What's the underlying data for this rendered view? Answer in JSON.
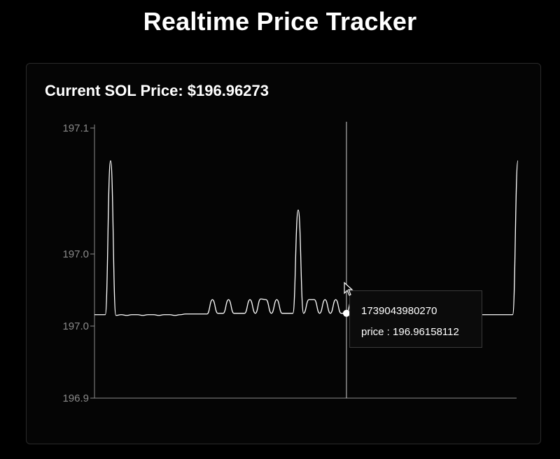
{
  "page": {
    "title": "Realtime Price Tracker",
    "price_heading": "Current SOL Price: $196.96273"
  },
  "colors": {
    "background": "#000000",
    "line": "#ffffff",
    "axis": "#8a8a8a",
    "card_border": "#2a2a2a"
  },
  "tooltip": {
    "timestamp": "1739043980270",
    "price_text": "price : 196.96158112"
  },
  "chart_data": {
    "type": "line",
    "ylim": [
      196.9,
      197.1
    ],
    "y_tick_labels": [
      "196.9",
      "197.0",
      "197.0",
      "197.1"
    ],
    "y_tick_values": [
      196.9,
      196.95,
      197.0,
      197.1
    ],
    "grid": false,
    "series": [
      {
        "values": [
          196.961,
          196.961,
          196.961,
          197.0735,
          196.9605,
          196.961,
          196.9605,
          196.961,
          196.961,
          196.9605,
          196.961,
          196.961,
          196.9605,
          196.961,
          196.961,
          196.9605,
          196.961,
          196.9615,
          196.9615,
          196.9615,
          196.9615,
          196.9615,
          196.972,
          196.962,
          196.962,
          196.972,
          196.962,
          196.962,
          196.962,
          196.972,
          196.962,
          196.9725,
          196.972,
          196.962,
          196.972,
          196.962,
          196.962,
          196.962,
          197.0375,
          196.962,
          196.972,
          196.972,
          196.962,
          196.972,
          196.962,
          196.972,
          196.962,
          196.962,
          196.972,
          196.962,
          196.962,
          196.961,
          196.9605,
          196.961,
          196.961,
          196.961,
          196.9605,
          196.961,
          196.961,
          196.961,
          196.961,
          196.9605,
          196.961,
          196.961,
          196.961,
          196.961,
          196.961,
          196.961,
          196.961,
          196.961,
          196.961,
          196.9605,
          196.961,
          196.961,
          196.961,
          196.961,
          196.961,
          196.961,
          196.961,
          197.0735
        ],
        "highlight_index": 47
      }
    ]
  }
}
